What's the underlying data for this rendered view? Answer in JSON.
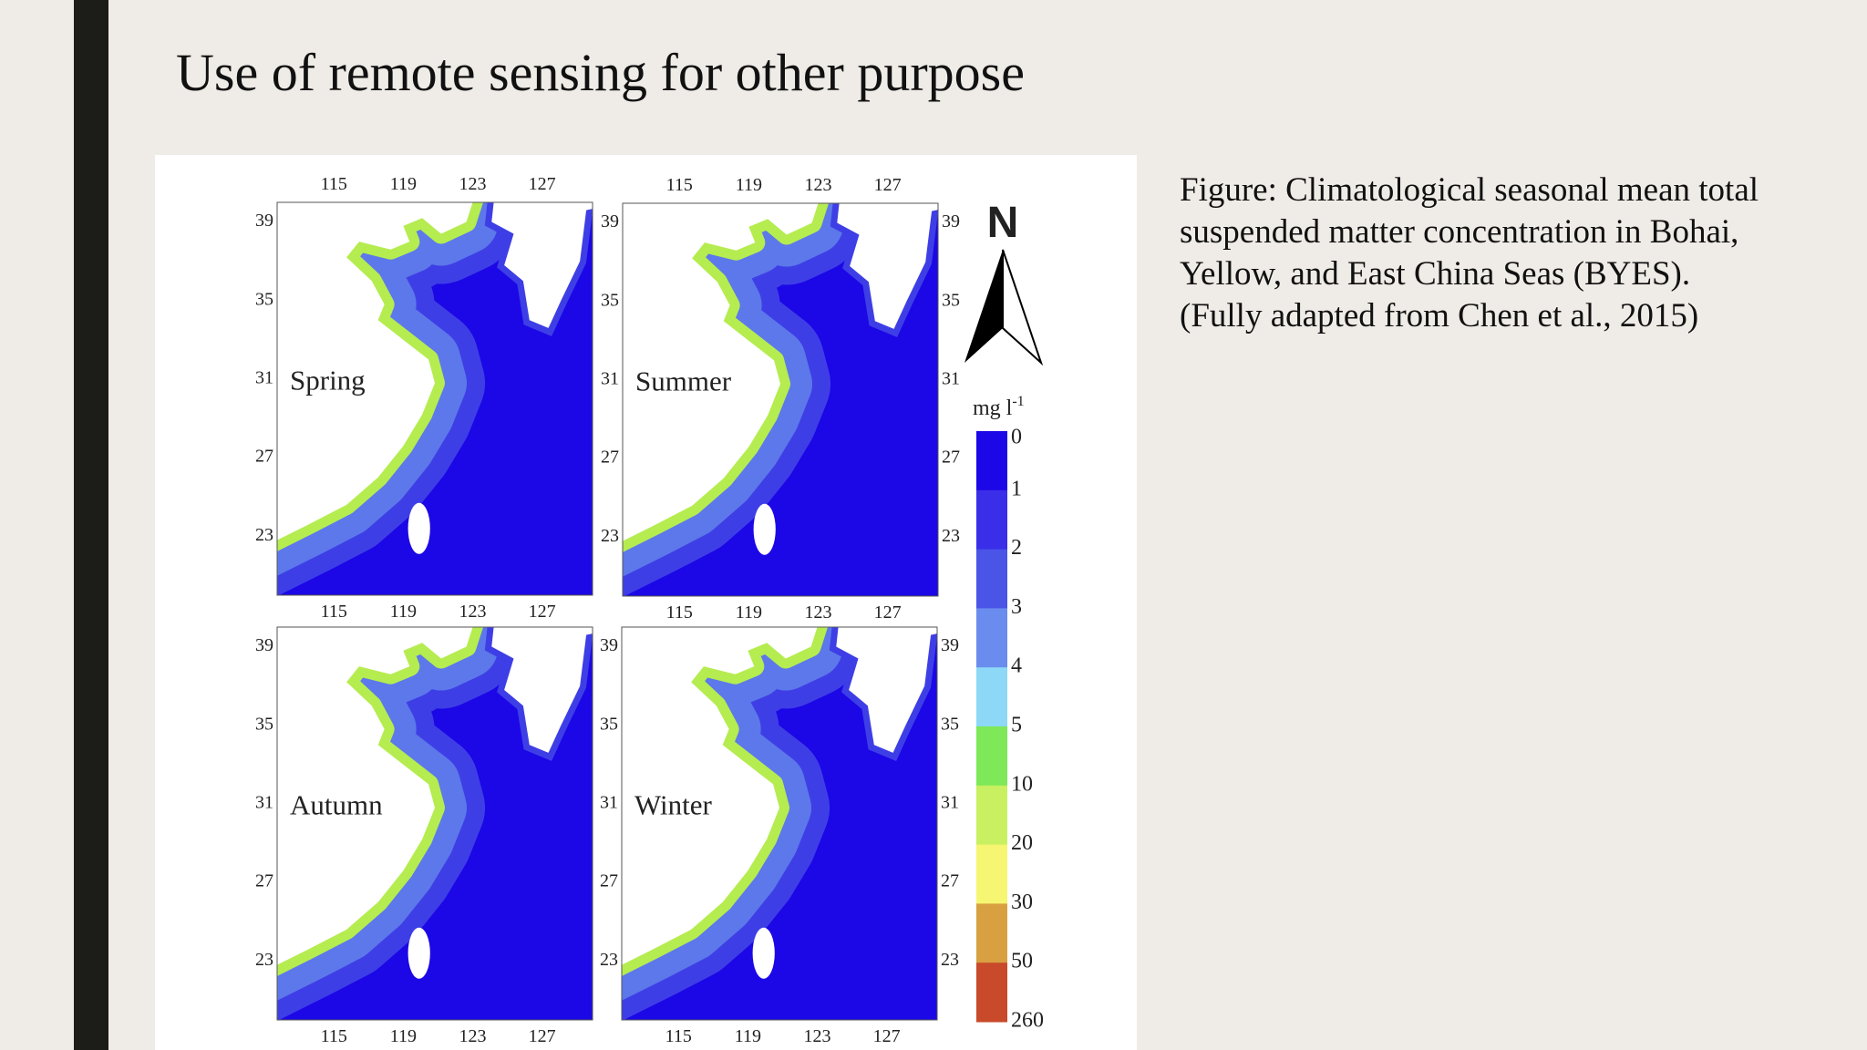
{
  "slide": {
    "title": "Use of remote sensing for other purpose",
    "caption": [
      "Figure: Climatological seasonal mean total",
      "suspended matter concentration in Bohai,",
      "Yellow, and East China Seas (BYES).",
      "(Fully adapted from Chen et al., 2015)"
    ],
    "figure": {
      "panels": [
        "Spring",
        "Summer",
        "Autumn",
        "Winter"
      ],
      "lon_ticks": [
        "115",
        "119",
        "123",
        "127"
      ],
      "lat_ticks": [
        "39",
        "35",
        "31",
        "27",
        "23"
      ],
      "north": "N",
      "unit": "mg l",
      "unit_exponent": "-1",
      "legend_labels": [
        "0",
        "1",
        "2",
        "3",
        "4",
        "5",
        "10",
        "20",
        "30",
        "50",
        "260"
      ]
    }
  }
}
